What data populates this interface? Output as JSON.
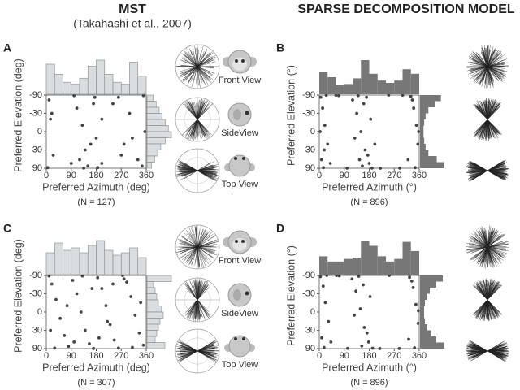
{
  "header": {
    "left_title": "MST",
    "left_subtitle": "(Takahashi et al., 2007)",
    "right_title": "SPARSE DECOMPOSITION MODEL"
  },
  "chart_data": [
    {
      "type": "scatter",
      "panel": "A",
      "xlabel": "Preferred Azimuth (deg)",
      "ylabel": "Preferred Elevation (deg)",
      "n_label": "(N = 127)",
      "views": [
        "Front View",
        "SideView",
        "Top View"
      ],
      "color": "#444444",
      "hist_color": "#d9dde0",
      "xlim": [
        0,
        360
      ],
      "ylim": [
        -90,
        90
      ],
      "yscale": "sine",
      "xticks": [
        0,
        90,
        180,
        270,
        360
      ],
      "yticks": [
        -90,
        -30,
        0,
        30,
        90
      ],
      "x": [
        10,
        15,
        25,
        5,
        100,
        110,
        130,
        140,
        150,
        120,
        170,
        180,
        200,
        185,
        260,
        280,
        300,
        330,
        350,
        355,
        345,
        20,
        160,
        175,
        90,
        270,
        240,
        310,
        135,
        200
      ],
      "values": [
        -60,
        -20,
        40,
        80,
        -80,
        -40,
        -10,
        30,
        70,
        50,
        -50,
        10,
        60,
        80,
        -70,
        20,
        -30,
        50,
        -80,
        0,
        70,
        -30,
        20,
        -70,
        60,
        40,
        -50,
        10,
        85,
        -20
      ],
      "x_hist": {
        "bins": [
          0,
          30,
          60,
          90,
          120,
          150,
          180,
          210,
          240,
          270,
          300,
          330,
          360
        ],
        "counts": [
          15,
          10,
          6,
          5,
          8,
          14,
          17,
          10,
          6,
          5,
          16,
          9
        ]
      },
      "y_hist": {
        "bins": [
          -90,
          -75,
          -60,
          -45,
          -30,
          -15,
          0,
          15,
          30,
          45,
          60,
          75,
          90
        ],
        "counts": [
          4,
          6,
          8,
          10,
          12,
          14,
          16,
          12,
          9,
          7,
          5,
          3
        ]
      }
    },
    {
      "type": "scatter",
      "panel": "B",
      "xlabel": "Preferred Azimuth (°)",
      "ylabel": "Preferred Elevation (°)",
      "n_label": "(N = 896)",
      "color": "#444444",
      "hist_color": "#777777",
      "xlim": [
        0,
        360
      ],
      "ylim": [
        -90,
        90
      ],
      "yscale": "sine",
      "xticks": [
        0,
        90,
        180,
        270,
        360
      ],
      "yticks": [
        -90,
        -30,
        0,
        30,
        90
      ],
      "x": [
        5,
        12,
        20,
        30,
        8,
        15,
        25,
        40,
        3,
        18,
        120,
        135,
        150,
        165,
        180,
        190,
        140,
        160,
        175,
        128,
        155,
        185,
        170,
        145,
        330,
        340,
        350,
        355,
        320,
        345,
        358,
        335,
        60,
        250,
        290,
        100,
        220,
        70,
        300,
        200
      ],
      "values": [
        -70,
        -40,
        -10,
        20,
        50,
        80,
        -85,
        60,
        0,
        30,
        -60,
        -30,
        0,
        30,
        60,
        85,
        -80,
        -50,
        40,
        10,
        70,
        -20,
        -70,
        50,
        -75,
        -40,
        -10,
        20,
        50,
        80,
        0,
        -60,
        -85,
        -88,
        85,
        85,
        88,
        -80,
        -85,
        20
      ],
      "x_hist": {
        "bins": [
          0,
          30,
          60,
          90,
          120,
          150,
          180,
          210,
          240,
          270,
          300,
          330,
          360
        ],
        "counts": [
          20,
          15,
          8,
          9,
          14,
          30,
          18,
          12,
          10,
          12,
          22,
          18
        ]
      },
      "y_hist": {
        "bins": [
          -90,
          -75,
          -60,
          -45,
          -30,
          -15,
          0,
          15,
          30,
          45,
          60,
          75,
          90
        ],
        "counts": [
          30,
          22,
          12,
          8,
          6,
          5,
          5,
          6,
          8,
          12,
          24,
          35
        ]
      }
    },
    {
      "type": "scatter",
      "panel": "C",
      "xlabel": "Preferred Azimuth (deg)",
      "ylabel": "Preferred Elevation (deg)",
      "n_label": "(N = 307)",
      "views": [
        "Front View",
        "SideView",
        "Top View"
      ],
      "color": "#444444",
      "hist_color": "#d9dde0",
      "xlim": [
        0,
        360
      ],
      "ylim": [
        -90,
        90
      ],
      "yscale": "sine",
      "xticks": [
        0,
        90,
        180,
        270,
        360
      ],
      "yticks": [
        -90,
        -30,
        0,
        30,
        90
      ],
      "x": [
        10,
        20,
        35,
        50,
        65,
        80,
        95,
        110,
        125,
        140,
        155,
        170,
        185,
        200,
        215,
        230,
        245,
        260,
        275,
        290,
        305,
        320,
        335,
        350,
        30,
        75,
        130,
        190,
        240,
        310,
        15,
        100,
        165,
        220,
        280,
        340
      ],
      "values": [
        -80,
        -50,
        -20,
        10,
        40,
        70,
        -60,
        -30,
        0,
        30,
        60,
        85,
        -70,
        -40,
        -10,
        20,
        50,
        80,
        -85,
        -55,
        -25,
        5,
        35,
        65,
        80,
        -10,
        -80,
        45,
        -50,
        75,
        30,
        55,
        -40,
        15,
        -65,
        -15
      ],
      "x_hist": {
        "bins": [
          0,
          30,
          60,
          90,
          120,
          150,
          180,
          210,
          240,
          270,
          300,
          330,
          360
        ],
        "counts": [
          18,
          26,
          20,
          22,
          18,
          24,
          28,
          20,
          16,
          18,
          22,
          14
        ]
      },
      "y_hist": {
        "bins": [
          -90,
          -75,
          -60,
          -45,
          -30,
          -15,
          0,
          15,
          30,
          45,
          60,
          75,
          90
        ],
        "counts": [
          30,
          8,
          10,
          12,
          14,
          18,
          20,
          16,
          14,
          12,
          10,
          22
        ]
      }
    },
    {
      "type": "scatter",
      "panel": "D",
      "xlabel": "Preferred Azimuth (°)",
      "ylabel": "Preferred Elevation (°)",
      "n_label": "(N = 896)",
      "color": "#444444",
      "hist_color": "#777777",
      "xlim": [
        0,
        360
      ],
      "ylim": [
        -90,
        90
      ],
      "yscale": "sine",
      "xticks": [
        0,
        90,
        180,
        270,
        360
      ],
      "yticks": [
        -90,
        -30,
        0,
        30,
        90
      ],
      "x": [
        4,
        14,
        22,
        33,
        9,
        17,
        27,
        42,
        118,
        132,
        148,
        162,
        178,
        192,
        142,
        158,
        172,
        126,
        153,
        183,
        325,
        338,
        348,
        356,
        322,
        343,
        357,
        333,
        62,
        252,
        288,
        102,
        218,
        72
      ],
      "values": [
        -75,
        -45,
        -15,
        15,
        45,
        75,
        -88,
        55,
        -65,
        -35,
        -5,
        25,
        55,
        82,
        -78,
        -48,
        35,
        5,
        68,
        -25,
        -72,
        -42,
        -12,
        18,
        48,
        78,
        -2,
        -58,
        -86,
        -87,
        86,
        84,
        87,
        -82
      ],
      "x_hist": {
        "bins": [
          0,
          30,
          60,
          90,
          120,
          150,
          180,
          210,
          240,
          270,
          300,
          330,
          360
        ],
        "counts": [
          14,
          10,
          10,
          12,
          13,
          26,
          22,
          14,
          10,
          12,
          25,
          18
        ]
      },
      "y_hist": {
        "bins": [
          -90,
          -75,
          -60,
          -45,
          -30,
          -15,
          0,
          15,
          30,
          45,
          60,
          75,
          90
        ],
        "counts": [
          28,
          20,
          12,
          8,
          6,
          5,
          5,
          6,
          9,
          14,
          20,
          30
        ]
      }
    }
  ]
}
